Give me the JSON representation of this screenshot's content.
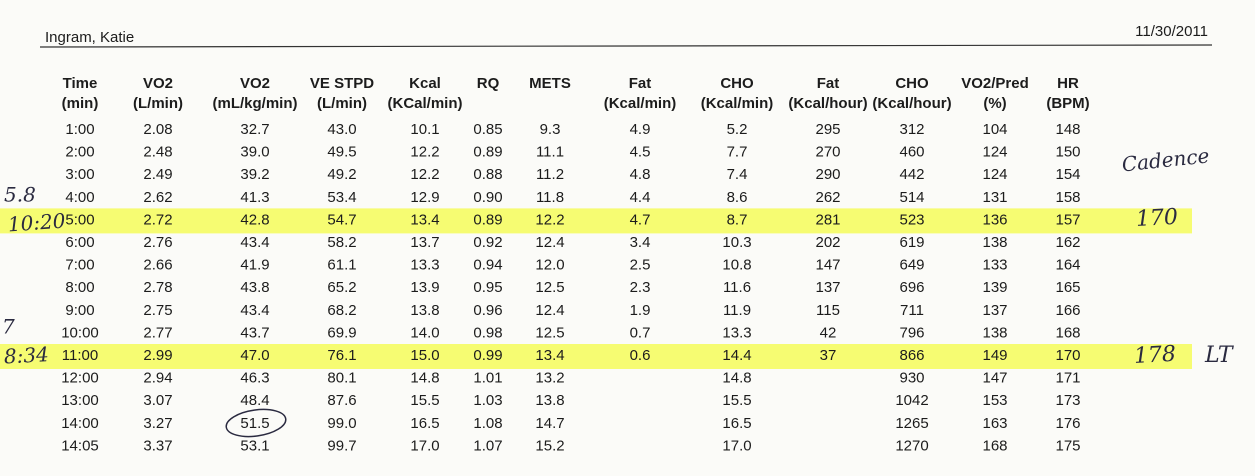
{
  "header": {
    "name": "Ingram, Katie",
    "date": "11/30/2011"
  },
  "table": {
    "columns": [
      [
        "Time",
        "(min)"
      ],
      [
        "VO2",
        "(L/min)"
      ],
      [
        "VO2",
        "(mL/kg/min)"
      ],
      [
        "VE STPD",
        "(L/min)"
      ],
      [
        "Kcal",
        "(KCal/min)"
      ],
      [
        "RQ"
      ],
      [
        "METS"
      ],
      [
        "Fat",
        "(Kcal/min)"
      ],
      [
        "CHO",
        "(Kcal/min)"
      ],
      [
        "Fat",
        "(Kcal/hour)"
      ],
      [
        "CHO",
        "(Kcal/hour)"
      ],
      [
        "VO2/Pred",
        "(%)"
      ],
      [
        "HR",
        "(BPM)"
      ]
    ],
    "rows": [
      [
        "1:00",
        "2.08",
        "32.7",
        "43.0",
        "10.1",
        "0.85",
        "9.3",
        "4.9",
        "5.2",
        "295",
        "312",
        "104",
        "148"
      ],
      [
        "2:00",
        "2.48",
        "39.0",
        "49.5",
        "12.2",
        "0.89",
        "11.1",
        "4.5",
        "7.7",
        "270",
        "460",
        "124",
        "150"
      ],
      [
        "3:00",
        "2.49",
        "39.2",
        "49.2",
        "12.2",
        "0.88",
        "11.2",
        "4.8",
        "7.4",
        "290",
        "442",
        "124",
        "154"
      ],
      [
        "4:00",
        "2.62",
        "41.3",
        "53.4",
        "12.9",
        "0.90",
        "11.8",
        "4.4",
        "8.6",
        "262",
        "514",
        "131",
        "158"
      ],
      [
        "5:00",
        "2.72",
        "42.8",
        "54.7",
        "13.4",
        "0.89",
        "12.2",
        "4.7",
        "8.7",
        "281",
        "523",
        "136",
        "157"
      ],
      [
        "6:00",
        "2.76",
        "43.4",
        "58.2",
        "13.7",
        "0.92",
        "12.4",
        "3.4",
        "10.3",
        "202",
        "619",
        "138",
        "162"
      ],
      [
        "7:00",
        "2.66",
        "41.9",
        "61.1",
        "13.3",
        "0.94",
        "12.0",
        "2.5",
        "10.8",
        "147",
        "649",
        "133",
        "164"
      ],
      [
        "8:00",
        "2.78",
        "43.8",
        "65.2",
        "13.9",
        "0.95",
        "12.5",
        "2.3",
        "11.6",
        "137",
        "696",
        "139",
        "165"
      ],
      [
        "9:00",
        "2.75",
        "43.4",
        "68.2",
        "13.8",
        "0.96",
        "12.4",
        "1.9",
        "11.9",
        "115",
        "711",
        "137",
        "166"
      ],
      [
        "10:00",
        "2.77",
        "43.7",
        "69.9",
        "14.0",
        "0.98",
        "12.5",
        "0.7",
        "13.3",
        "42",
        "796",
        "138",
        "168"
      ],
      [
        "11:00",
        "2.99",
        "47.0",
        "76.1",
        "15.0",
        "0.99",
        "13.4",
        "0.6",
        "14.4",
        "37",
        "866",
        "149",
        "170"
      ],
      [
        "12:00",
        "2.94",
        "46.3",
        "80.1",
        "14.8",
        "1.01",
        "13.2",
        null,
        "14.8",
        null,
        "930",
        "147",
        "171"
      ],
      [
        "13:00",
        "3.07",
        "48.4",
        "87.6",
        "15.5",
        "1.03",
        "13.8",
        null,
        "15.5",
        null,
        "1042",
        "153",
        "173"
      ],
      [
        "14:00",
        "3.27",
        "51.5",
        "99.0",
        "16.5",
        "1.08",
        "14.7",
        null,
        "16.5",
        null,
        "1265",
        "163",
        "176"
      ],
      [
        "14:05",
        "3.37",
        "53.1",
        "99.7",
        "17.0",
        "1.07",
        "15.2",
        null,
        "17.0",
        null,
        "1270",
        "168",
        "175"
      ]
    ],
    "highlighted_rows": [
      4,
      10
    ]
  },
  "annotations": [
    "5.8",
    "10:20",
    "Cadence",
    "170",
    "7",
    "8:34",
    "178",
    "LT"
  ]
}
